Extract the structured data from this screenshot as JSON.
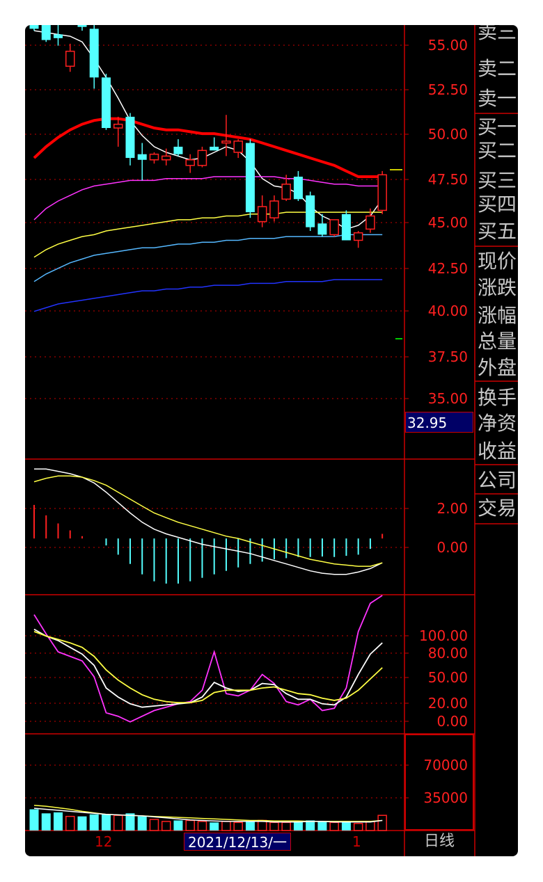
{
  "colors": {
    "background": "#000000",
    "frame_red": "#cc0000",
    "bull": "#ff2020",
    "bear": "#54ffff",
    "ma_white": "#ffffff",
    "ma_red": "#ff0000",
    "ma_magenta": "#ff33ff",
    "ma_yellow": "#ffff44",
    "ma_cyan": "#55b8ff",
    "ma_blue": "#2233ff",
    "axis_text": "#ff2020",
    "label_text": "#c8c8c8",
    "highlight_box": "#000066"
  },
  "side_panel": {
    "sell_labels": [
      "卖三",
      "卖二",
      "卖一"
    ],
    "buy_labels": [
      "买一",
      "买二",
      "买三",
      "买四",
      "买五"
    ],
    "quote_labels": [
      "现价",
      "涨跌",
      "涨幅",
      "总量",
      "外盘"
    ],
    "finance_labels": [
      "换手",
      "净资",
      "收益"
    ],
    "extra_labels": [
      "公司",
      "交易"
    ]
  },
  "current_price_label": "32.95",
  "x_axis": {
    "ticks": [
      "12",
      "1"
    ],
    "cursor_date": "2021/12/13/一",
    "period_label": "日线"
  },
  "chart_data": [
    {
      "type": "candlestick",
      "panel": "price",
      "title": "",
      "y_ticks": [
        "55.00",
        "52.50",
        "50.00",
        "47.50",
        "45.00",
        "42.50",
        "40.00",
        "37.50",
        "35.00"
      ],
      "ylim": [
        32.95,
        56.1
      ],
      "grid": true,
      "candles": [
        {
          "o": 56.5,
          "h": 57.2,
          "l": 55.8,
          "c": 55.9
        },
        {
          "o": 56.3,
          "h": 56.8,
          "l": 55.2,
          "c": 55.3
        },
        {
          "o": 55.6,
          "h": 56.5,
          "l": 55.0,
          "c": 55.4
        },
        {
          "o": 53.9,
          "h": 55.1,
          "l": 53.6,
          "c": 54.7
        },
        {
          "o": 56.2,
          "h": 56.7,
          "l": 55.8,
          "c": 56.0
        },
        {
          "o": 55.9,
          "h": 56.2,
          "l": 52.7,
          "c": 53.3
        },
        {
          "o": 53.3,
          "h": 53.5,
          "l": 50.5,
          "c": 50.6
        },
        {
          "o": 50.6,
          "h": 51.2,
          "l": 49.6,
          "c": 50.8
        },
        {
          "o": 51.2,
          "h": 51.4,
          "l": 48.6,
          "c": 49.0
        },
        {
          "o": 49.2,
          "h": 49.8,
          "l": 47.8,
          "c": 48.9
        },
        {
          "o": 48.9,
          "h": 49.3,
          "l": 48.7,
          "c": 49.2
        },
        {
          "o": 48.9,
          "h": 49.5,
          "l": 48.6,
          "c": 49.1
        },
        {
          "o": 49.6,
          "h": 50.0,
          "l": 49.1,
          "c": 49.2
        },
        {
          "o": 48.6,
          "h": 49.2,
          "l": 48.2,
          "c": 48.9
        },
        {
          "o": 48.6,
          "h": 49.6,
          "l": 48.5,
          "c": 49.4
        },
        {
          "o": 49.6,
          "h": 50.1,
          "l": 49.4,
          "c": 49.4
        },
        {
          "o": 49.8,
          "h": 51.3,
          "l": 49.1,
          "c": 49.9
        },
        {
          "o": 49.3,
          "h": 50.0,
          "l": 49.0,
          "c": 49.9
        },
        {
          "o": 49.8,
          "h": 50.0,
          "l": 45.8,
          "c": 46.1
        },
        {
          "o": 45.6,
          "h": 47.0,
          "l": 45.3,
          "c": 46.4
        },
        {
          "o": 45.8,
          "h": 47.0,
          "l": 45.6,
          "c": 46.7
        },
        {
          "o": 46.8,
          "h": 48.1,
          "l": 46.7,
          "c": 47.6
        },
        {
          "o": 48.0,
          "h": 48.3,
          "l": 46.7,
          "c": 46.8
        },
        {
          "o": 47.0,
          "h": 47.2,
          "l": 45.1,
          "c": 45.3
        },
        {
          "o": 45.5,
          "h": 46.0,
          "l": 44.8,
          "c": 44.9
        },
        {
          "o": 44.9,
          "h": 45.7,
          "l": 44.8,
          "c": 45.7
        },
        {
          "o": 46.0,
          "h": 46.2,
          "l": 44.6,
          "c": 44.6
        },
        {
          "o": 44.6,
          "h": 45.1,
          "l": 44.2,
          "c": 45.0
        },
        {
          "o": 45.2,
          "h": 46.3,
          "l": 45.0,
          "c": 45.9
        },
        {
          "o": 46.2,
          "h": 48.3,
          "l": 46.0,
          "c": 48.1
        }
      ],
      "ma_lines": [
        {
          "color_key": "ma_white",
          "values": [
            55.8,
            55.7,
            55.6,
            55.5,
            55.2,
            54.3,
            53.3,
            52.2,
            51.0,
            50.2,
            49.6,
            49.3,
            49.1,
            48.9,
            49.0,
            49.3,
            49.6,
            49.4,
            48.8,
            47.9,
            47.5,
            47.4,
            47.1,
            46.4,
            45.9,
            45.6,
            45.2,
            45.4,
            45.9,
            46.8
          ]
        },
        {
          "color_key": "ma_red",
          "values": [
            49.0,
            49.6,
            50.1,
            50.5,
            50.8,
            51.0,
            51.1,
            51.1,
            51.0,
            50.8,
            50.6,
            50.5,
            50.5,
            50.4,
            50.3,
            50.3,
            50.2,
            50.1,
            50.0,
            49.8,
            49.6,
            49.4,
            49.2,
            49.0,
            48.8,
            48.6,
            48.3,
            48.0,
            48.0,
            48.0
          ]
        },
        {
          "color_key": "ma_magenta",
          "values": [
            45.7,
            46.3,
            46.7,
            47.0,
            47.3,
            47.5,
            47.6,
            47.7,
            47.8,
            47.8,
            47.8,
            47.9,
            47.9,
            47.9,
            47.9,
            48.0,
            48.0,
            48.0,
            48.0,
            48.0,
            48.0,
            47.9,
            47.9,
            47.8,
            47.7,
            47.6,
            47.6,
            47.5,
            47.5,
            47.5
          ]
        },
        {
          "color_key": "ma_yellow",
          "values": [
            43.7,
            44.1,
            44.4,
            44.6,
            44.8,
            44.9,
            45.1,
            45.2,
            45.3,
            45.4,
            45.5,
            45.6,
            45.7,
            45.7,
            45.8,
            45.8,
            45.9,
            45.9,
            46.0,
            46.0,
            46.0,
            46.1,
            46.1,
            46.1,
            46.1,
            46.1,
            46.1,
            46.1,
            46.1,
            46.1
          ]
        },
        {
          "color_key": "ma_cyan",
          "values": [
            42.4,
            42.8,
            43.1,
            43.4,
            43.6,
            43.8,
            43.9,
            44.0,
            44.1,
            44.2,
            44.2,
            44.3,
            44.4,
            44.4,
            44.5,
            44.5,
            44.6,
            44.6,
            44.7,
            44.7,
            44.7,
            44.8,
            44.8,
            44.8,
            44.8,
            44.8,
            44.9,
            44.9,
            44.9,
            44.9
          ]
        },
        {
          "color_key": "ma_blue",
          "values": [
            40.8,
            41.0,
            41.2,
            41.3,
            41.4,
            41.5,
            41.6,
            41.7,
            41.8,
            41.9,
            41.9,
            42.0,
            42.0,
            42.1,
            42.1,
            42.2,
            42.2,
            42.2,
            42.3,
            42.3,
            42.3,
            42.4,
            42.4,
            42.4,
            42.4,
            42.5,
            42.5,
            42.5,
            42.5,
            42.5
          ]
        }
      ]
    },
    {
      "type": "bar",
      "panel": "macd",
      "y_ticks": [
        "2.00",
        "0.00"
      ],
      "ylim": [
        -2.4,
        3.4
      ],
      "histogram": [
        1.45,
        1.0,
        0.65,
        0.35,
        0.1,
        0.0,
        -0.3,
        -0.7,
        -1.1,
        -1.55,
        -1.85,
        -1.95,
        -1.95,
        -1.85,
        -1.7,
        -1.55,
        -1.4,
        -1.25,
        -1.1,
        -1.0,
        -0.9,
        -0.85,
        -0.8,
        -0.8,
        -0.78,
        -0.8,
        -0.75,
        -0.7,
        -0.45,
        0.2
      ],
      "lines": [
        {
          "color_key": "ma_white",
          "values": [
            3.0,
            3.0,
            2.9,
            2.8,
            2.65,
            2.4,
            2.0,
            1.55,
            1.1,
            0.7,
            0.4,
            0.2,
            0.05,
            -0.1,
            -0.25,
            -0.35,
            -0.45,
            -0.55,
            -0.65,
            -0.8,
            -0.95,
            -1.1,
            -1.25,
            -1.4,
            -1.5,
            -1.55,
            -1.55,
            -1.45,
            -1.3,
            -1.05
          ]
        },
        {
          "color_key": "ma_yellow",
          "values": [
            2.45,
            2.6,
            2.7,
            2.7,
            2.65,
            2.5,
            2.3,
            2.0,
            1.7,
            1.4,
            1.1,
            0.9,
            0.7,
            0.55,
            0.4,
            0.25,
            0.1,
            0.0,
            -0.15,
            -0.3,
            -0.45,
            -0.6,
            -0.75,
            -0.9,
            -1.0,
            -1.1,
            -1.15,
            -1.2,
            -1.2,
            -1.05
          ]
        }
      ]
    },
    {
      "type": "line",
      "panel": "kdj",
      "y_ticks": [
        "100.00",
        "80.00",
        "50.00",
        "20.00",
        "0.00"
      ],
      "ylim": [
        -10,
        112
      ],
      "series": [
        {
          "color_key": "ma_magenta",
          "values": [
            95,
            78,
            62,
            58,
            54,
            40,
            8,
            5,
            0,
            5,
            10,
            13,
            16,
            18,
            28,
            62,
            25,
            23,
            28,
            42,
            34,
            18,
            15,
            20,
            10,
            12,
            30,
            80,
            105,
            115
          ]
        },
        {
          "color_key": "ma_white",
          "values": [
            82,
            76,
            72,
            66,
            60,
            50,
            30,
            22,
            16,
            13,
            14,
            15,
            16,
            17,
            22,
            35,
            30,
            27,
            28,
            34,
            33,
            25,
            20,
            20,
            16,
            15,
            22,
            42,
            60,
            70
          ]
        },
        {
          "color_key": "ma_yellow",
          "values": [
            80,
            76,
            73,
            70,
            66,
            58,
            46,
            37,
            30,
            24,
            20,
            18,
            17,
            17,
            19,
            26,
            28,
            28,
            28,
            30,
            31,
            28,
            25,
            24,
            21,
            19,
            21,
            28,
            38,
            48
          ]
        }
      ]
    },
    {
      "type": "bar",
      "panel": "volume",
      "y_ticks": [
        "70000",
        "35000"
      ],
      "ylim": [
        0,
        95000
      ],
      "volume": [
        21000,
        17000,
        18000,
        14000,
        14000,
        16000,
        16000,
        15000,
        17000,
        14000,
        11000,
        9000,
        10000,
        10000,
        9000,
        8000,
        9000,
        8000,
        9000,
        10000,
        8000,
        8000,
        9000,
        10000,
        9000,
        8000,
        8000,
        7000,
        9000,
        15000
      ],
      "lines": [
        {
          "color_key": "ma_yellow",
          "values": [
            25000,
            24000,
            22500,
            21000,
            19000,
            17500,
            16000,
            15500,
            15000,
            14500,
            14000,
            13500,
            13000,
            12500,
            12000,
            11500,
            11000,
            10500,
            10000,
            10000,
            9500,
            9500,
            9500,
            9000,
            9000,
            9000,
            9000,
            9000,
            9000,
            10000
          ]
        },
        {
          "color_key": "ma_white",
          "values": [
            22000,
            21000,
            20000,
            19000,
            18000,
            17000,
            16000,
            15500,
            15000,
            14500,
            13500,
            12500,
            11500,
            10500,
            10000,
            9500,
            9000,
            9000,
            9000,
            9000,
            8500,
            8500,
            8500,
            9000,
            9000,
            8500,
            8500,
            8500,
            8500,
            10000
          ]
        }
      ]
    }
  ]
}
